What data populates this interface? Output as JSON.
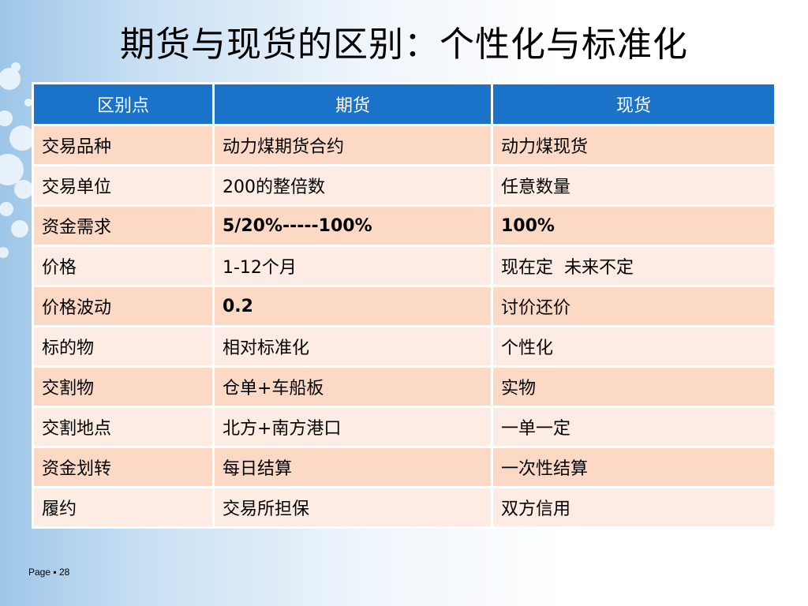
{
  "title": "期货与现货的区别：个性化与标准化",
  "table": {
    "headers": [
      "区别点",
      "期货",
      "现货"
    ],
    "rows": [
      [
        "交易品种",
        "动力煤期货合约",
        "动力煤现货"
      ],
      [
        "交易单位",
        "200的整倍数",
        "任意数量"
      ],
      [
        "资金需求",
        "5/20%-----100%",
        "100%"
      ],
      [
        "价格",
        "1-12个月",
        "现在定  未来不定"
      ],
      [
        "价格波动",
        "0.2",
        "讨价还价"
      ],
      [
        "标的物",
        "相对标准化",
        "个性化"
      ],
      [
        "交割物",
        "仓单+车船板",
        "实物"
      ],
      [
        "交割地点",
        "北方+南方港口",
        "一单一定"
      ],
      [
        "资金划转",
        "每日结算",
        "一次性结算"
      ],
      [
        "履约",
        "交易所担保",
        "双方信用"
      ]
    ]
  },
  "footer": "Page ▪ 28",
  "colors": {
    "header_bg": "#1a73c8",
    "row_odd": "#fcd9c5",
    "row_even": "#fdece3"
  }
}
